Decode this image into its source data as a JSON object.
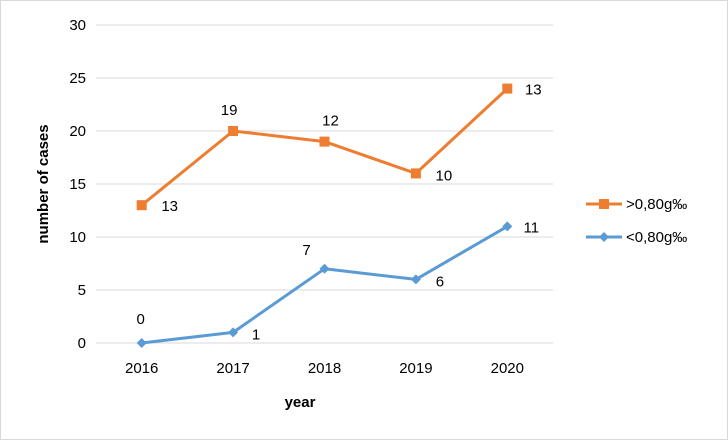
{
  "chart_data": {
    "type": "line",
    "title": "",
    "xlabel": "year",
    "ylabel": "number of cases",
    "categories": [
      "2016",
      "2017",
      "2018",
      "2019",
      "2020"
    ],
    "ylim": [
      0,
      30
    ],
    "yticks": [
      "0",
      "5",
      "10",
      "15",
      "20",
      "25",
      "30"
    ],
    "grid": true,
    "legend_position": "right",
    "series": [
      {
        "name": ">0,80g‰",
        "color": "#ed7d31",
        "marker": "square",
        "values": [
          13,
          20,
          19,
          16,
          24
        ],
        "labels": [
          "13",
          "19",
          "12",
          "10",
          "13"
        ]
      },
      {
        "name": "<0,80g‰",
        "color": "#5b9bd5",
        "marker": "diamond",
        "values": [
          0,
          1,
          7,
          6,
          11
        ],
        "labels": [
          "0",
          "1",
          "7",
          "6",
          "11"
        ]
      }
    ]
  }
}
